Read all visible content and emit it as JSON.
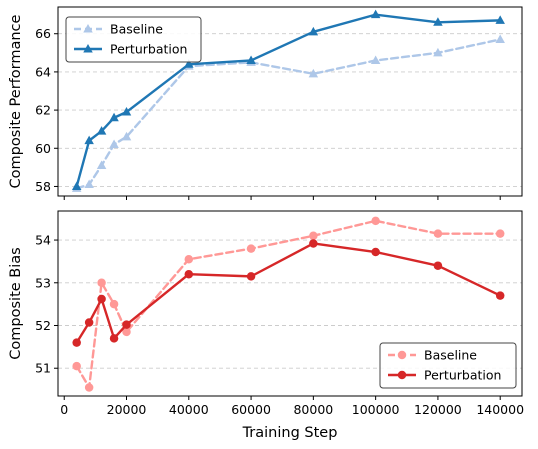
{
  "chart_data": [
    {
      "type": "line",
      "ylabel": "Composite Performance",
      "xlabel": "",
      "x": [
        4000,
        8000,
        12000,
        16000,
        20000,
        40000,
        60000,
        80000,
        100000,
        120000,
        140000
      ],
      "xlim": [
        -2000,
        147000
      ],
      "ylim": [
        57.5,
        67.4
      ],
      "yticks": [
        58,
        60,
        62,
        64,
        66
      ],
      "grid": "y-dashed",
      "legend": "top-left",
      "marker": "triangle",
      "series": [
        {
          "name": "Baseline",
          "color": "#aec7e8",
          "dash": true,
          "values": [
            57.9,
            58.1,
            59.1,
            60.2,
            60.6,
            64.3,
            64.5,
            63.9,
            64.6,
            65.0,
            65.7
          ]
        },
        {
          "name": "Perturbation",
          "color": "#1f77b4",
          "dash": false,
          "values": [
            58.0,
            60.4,
            60.9,
            61.6,
            61.9,
            64.4,
            64.6,
            66.1,
            67.0,
            66.6,
            66.7
          ]
        }
      ]
    },
    {
      "type": "line",
      "ylabel": "Composite Bias",
      "xlabel": "Training Step",
      "x": [
        4000,
        8000,
        12000,
        16000,
        20000,
        40000,
        60000,
        80000,
        100000,
        120000,
        140000
      ],
      "xlim": [
        -2000,
        147000
      ],
      "ylim": [
        50.35,
        54.68
      ],
      "yticks": [
        51,
        52,
        53,
        54
      ],
      "xticks": [
        0,
        20000,
        40000,
        60000,
        80000,
        100000,
        120000,
        140000
      ],
      "grid": "y-dashed",
      "legend": "bottom-right",
      "marker": "circle",
      "series": [
        {
          "name": "Baseline",
          "color": "#ff9896",
          "dash": true,
          "values": [
            51.05,
            50.55,
            53.0,
            52.5,
            51.85,
            53.55,
            53.8,
            54.1,
            54.45,
            54.15,
            54.15
          ]
        },
        {
          "name": "Perturbation",
          "color": "#d62728",
          "dash": false,
          "values": [
            51.6,
            52.07,
            52.62,
            51.7,
            52.02,
            53.2,
            53.15,
            53.92,
            53.72,
            53.4,
            52.7
          ]
        }
      ]
    }
  ]
}
